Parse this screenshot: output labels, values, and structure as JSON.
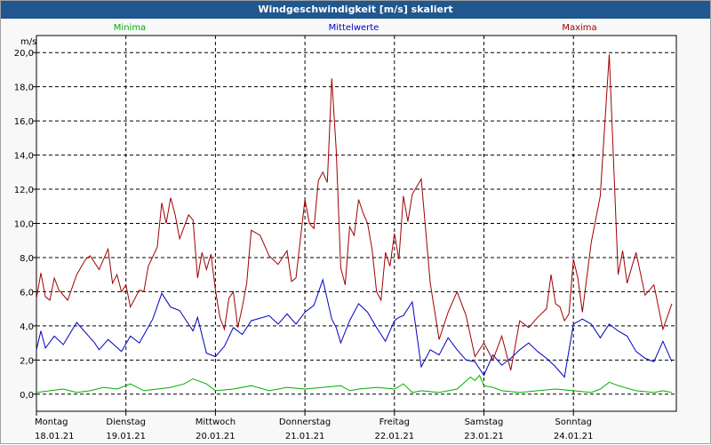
{
  "chart_data": {
    "type": "line",
    "title": "Windgeschwindigkeit [m/s] skaliert",
    "ylabel": "m/s",
    "ylim": [
      -1,
      21
    ],
    "yticks": [
      "0,0",
      "2,0",
      "4,0",
      "6,0",
      "8,0",
      "10,0",
      "12,0",
      "14,0",
      "16,0",
      "18,0",
      "20,0"
    ],
    "ytick_values": [
      0,
      2,
      4,
      6,
      8,
      10,
      12,
      14,
      16,
      18,
      20
    ],
    "xlim": [
      0,
      7.15
    ],
    "xticks": [
      {
        "day": "Montag",
        "date": "18.01.21"
      },
      {
        "day": "Dienstag",
        "date": "19.01.21"
      },
      {
        "day": "Mittwoch",
        "date": "20.01.21"
      },
      {
        "day": "Donnerstag",
        "date": "21.01.21"
      },
      {
        "day": "Freitag",
        "date": "22.01.21"
      },
      {
        "day": "Samstag",
        "date": "23.01.21"
      },
      {
        "day": "Sonntag",
        "date": "24.01.21"
      }
    ],
    "series": [
      {
        "name": "Minima",
        "color": "#00b000",
        "x": [
          0,
          0.15,
          0.3,
          0.45,
          0.6,
          0.75,
          0.9,
          1.05,
          1.2,
          1.35,
          1.5,
          1.65,
          1.75,
          1.85,
          1.9,
          2.0,
          2.2,
          2.4,
          2.6,
          2.8,
          3.0,
          3.2,
          3.4,
          3.5,
          3.6,
          3.8,
          4.0,
          4.1,
          4.2,
          4.3,
          4.5,
          4.7,
          4.85,
          4.9,
          4.95,
          5.0,
          5.1,
          5.2,
          5.4,
          5.6,
          5.8,
          6.0,
          6.2,
          6.3,
          6.4,
          6.5,
          6.7,
          6.9,
          7.0,
          7.1
        ],
        "y": [
          0.1,
          0.2,
          0.3,
          0.1,
          0.2,
          0.4,
          0.3,
          0.6,
          0.2,
          0.3,
          0.4,
          0.6,
          0.9,
          0.7,
          0.6,
          0.2,
          0.3,
          0.5,
          0.2,
          0.4,
          0.3,
          0.4,
          0.5,
          0.2,
          0.3,
          0.4,
          0.3,
          0.6,
          0.1,
          0.2,
          0.1,
          0.3,
          1.0,
          0.8,
          1.1,
          0.5,
          0.4,
          0.2,
          0.1,
          0.2,
          0.3,
          0.2,
          0.1,
          0.3,
          0.7,
          0.5,
          0.2,
          0.1,
          0.2,
          0.1
        ]
      },
      {
        "name": "Mittelwerte",
        "color": "#0000c0",
        "x": [
          0,
          0.05,
          0.1,
          0.2,
          0.3,
          0.45,
          0.55,
          0.65,
          0.7,
          0.8,
          0.95,
          1.05,
          1.15,
          1.3,
          1.4,
          1.5,
          1.55,
          1.6,
          1.75,
          1.8,
          1.9,
          2.0,
          2.1,
          2.2,
          2.3,
          2.4,
          2.6,
          2.7,
          2.8,
          2.9,
          3.0,
          3.1,
          3.2,
          3.3,
          3.35,
          3.4,
          3.5,
          3.6,
          3.7,
          3.8,
          3.9,
          4.0,
          4.05,
          4.1,
          4.2,
          4.3,
          4.4,
          4.5,
          4.6,
          4.7,
          4.8,
          4.9,
          5.0,
          5.1,
          5.2,
          5.3,
          5.4,
          5.5,
          5.6,
          5.7,
          5.8,
          5.9,
          6.0,
          6.1,
          6.2,
          6.3,
          6.4,
          6.5,
          6.6,
          6.7,
          6.8,
          6.9,
          7.0,
          7.1
        ],
        "y": [
          2.6,
          3.7,
          2.7,
          3.4,
          2.9,
          4.2,
          3.6,
          3.0,
          2.6,
          3.2,
          2.5,
          3.4,
          3.0,
          4.4,
          5.9,
          5.1,
          5.0,
          4.9,
          3.7,
          4.5,
          2.4,
          2.2,
          2.8,
          3.9,
          3.5,
          4.3,
          4.6,
          4.1,
          4.7,
          4.1,
          4.8,
          5.2,
          6.7,
          4.4,
          3.9,
          3.0,
          4.3,
          5.3,
          4.8,
          3.9,
          3.1,
          4.3,
          4.5,
          4.6,
          5.4,
          1.6,
          2.6,
          2.3,
          3.3,
          2.6,
          2.0,
          1.9,
          1.1,
          2.3,
          1.7,
          2.1,
          2.6,
          3.0,
          2.5,
          2.1,
          1.6,
          1.0,
          4.1,
          4.4,
          4.1,
          3.3,
          4.1,
          3.7,
          3.4,
          2.5,
          2.1,
          1.9,
          3.1,
          1.9
        ]
      },
      {
        "name": "Maxima",
        "color": "#a00000",
        "x": [
          0,
          0.05,
          0.1,
          0.15,
          0.2,
          0.25,
          0.35,
          0.45,
          0.55,
          0.6,
          0.7,
          0.8,
          0.85,
          0.9,
          0.95,
          1.0,
          1.05,
          1.15,
          1.2,
          1.25,
          1.35,
          1.4,
          1.45,
          1.5,
          1.55,
          1.6,
          1.65,
          1.7,
          1.75,
          1.8,
          1.85,
          1.9,
          1.95,
          2.0,
          2.05,
          2.1,
          2.15,
          2.2,
          2.25,
          2.3,
          2.35,
          2.4,
          2.5,
          2.6,
          2.7,
          2.8,
          2.85,
          2.9,
          3.0,
          3.05,
          3.1,
          3.15,
          3.2,
          3.25,
          3.3,
          3.35,
          3.4,
          3.45,
          3.5,
          3.55,
          3.6,
          3.65,
          3.7,
          3.75,
          3.8,
          3.85,
          3.9,
          3.95,
          4.0,
          4.05,
          4.1,
          4.15,
          4.2,
          4.3,
          4.4,
          4.5,
          4.6,
          4.7,
          4.8,
          4.9,
          5.0,
          5.1,
          5.2,
          5.3,
          5.4,
          5.5,
          5.6,
          5.7,
          5.75,
          5.8,
          5.85,
          5.9,
          5.95,
          6.0,
          6.05,
          6.1,
          6.2,
          6.3,
          6.4,
          6.5,
          6.55,
          6.6,
          6.7,
          6.8,
          6.9,
          7.0,
          7.1
        ],
        "y": [
          5.6,
          7.1,
          5.7,
          5.5,
          6.8,
          6.1,
          5.5,
          7.0,
          7.9,
          8.1,
          7.3,
          8.5,
          6.5,
          7.0,
          6.0,
          6.4,
          5.1,
          6.1,
          6.0,
          7.5,
          8.6,
          11.2,
          10.0,
          11.5,
          10.5,
          9.1,
          9.8,
          10.5,
          10.2,
          6.8,
          8.3,
          7.3,
          8.2,
          6.1,
          4.5,
          3.8,
          5.6,
          6.0,
          3.9,
          5.1,
          6.5,
          9.6,
          9.3,
          8.1,
          7.6,
          8.4,
          6.6,
          6.8,
          11.4,
          10.0,
          9.7,
          12.5,
          13.0,
          12.4,
          18.5,
          14.3,
          7.4,
          6.4,
          9.8,
          9.3,
          11.4,
          10.6,
          10.0,
          8.5,
          6.0,
          5.5,
          8.3,
          7.5,
          9.4,
          7.9,
          11.6,
          10.1,
          11.7,
          12.6,
          6.5,
          3.2,
          4.8,
          6.0,
          4.6,
          2.2,
          3.0,
          2.0,
          3.4,
          1.4,
          4.3,
          3.9,
          4.5,
          5.0,
          7.0,
          5.3,
          5.1,
          4.3,
          4.7,
          7.9,
          6.8,
          4.8,
          8.9,
          11.6,
          19.9,
          7.0,
          8.4,
          6.5,
          8.3,
          5.8,
          6.4,
          3.8,
          5.3
        ]
      }
    ]
  }
}
